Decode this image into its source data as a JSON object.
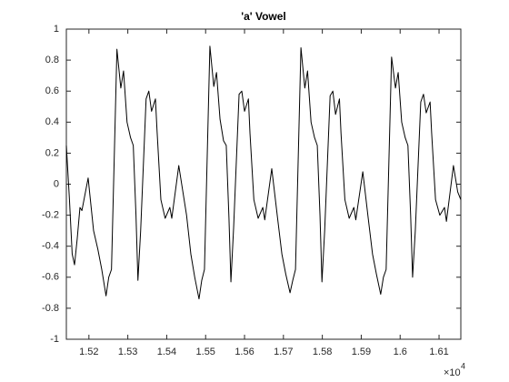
{
  "chart_data": {
    "type": "line",
    "title": "'a' Vowel",
    "x_multiplier": "×10",
    "x_exponent": 4,
    "xlim": [
      1.5142,
      1.6156
    ],
    "xticks": [
      1.52,
      1.53,
      1.54,
      1.55,
      1.56,
      1.57,
      1.58,
      1.59,
      1.6,
      1.61
    ],
    "ylim": [
      -1,
      1
    ],
    "yticks": [
      -1,
      -0.8,
      -0.6,
      -0.4,
      -0.2,
      0,
      0.2,
      0.4,
      0.6,
      0.8,
      1
    ],
    "grid": false,
    "series": [
      {
        "color": "#000000",
        "x": [
          1.5142,
          1.515,
          1.5157,
          1.5163,
          1.517,
          1.5177,
          1.5182,
          1.5198,
          1.5212,
          1.5223,
          1.5233,
          1.5244,
          1.5251,
          1.5258,
          1.5272,
          1.5282,
          1.5289,
          1.5298,
          1.5307,
          1.5314,
          1.5321,
          1.5326,
          1.5333,
          1.5347,
          1.5354,
          1.5361,
          1.5371,
          1.5375,
          1.5385,
          1.5396,
          1.5408,
          1.5413,
          1.5431,
          1.5451,
          1.5462,
          1.5472,
          1.5483,
          1.549,
          1.5497,
          1.5511,
          1.5521,
          1.5528,
          1.5537,
          1.5546,
          1.5553,
          1.556,
          1.5565,
          1.5572,
          1.5586,
          1.5593,
          1.56,
          1.561,
          1.5614,
          1.5624,
          1.5635,
          1.5647,
          1.5652,
          1.567,
          1.5685,
          1.5696,
          1.5706,
          1.5717,
          1.5724,
          1.5731,
          1.5745,
          1.5755,
          1.5762,
          1.5771,
          1.578,
          1.5787,
          1.5794,
          1.5799,
          1.5806,
          1.582,
          1.5827,
          1.5834,
          1.5844,
          1.5848,
          1.5858,
          1.5869,
          1.5881,
          1.5886,
          1.5904,
          1.5918,
          1.5929,
          1.5939,
          1.595,
          1.5957,
          1.5964,
          1.5978,
          1.5988,
          1.5995,
          1.6004,
          1.6013,
          1.602,
          1.6027,
          1.6032,
          1.6039,
          1.6053,
          1.606,
          1.6067,
          1.6077,
          1.6081,
          1.6091,
          1.6102,
          1.6114,
          1.6119,
          1.6137,
          1.6148,
          1.6156
        ],
        "values": [
          0.25,
          -0.1,
          -0.45,
          -0.52,
          -0.35,
          -0.15,
          -0.17,
          0.04,
          -0.3,
          -0.42,
          -0.55,
          -0.72,
          -0.6,
          -0.55,
          0.87,
          0.62,
          0.73,
          0.4,
          0.3,
          0.25,
          -0.2,
          -0.62,
          -0.3,
          0.55,
          0.6,
          0.47,
          0.55,
          0.35,
          -0.1,
          -0.22,
          -0.15,
          -0.22,
          0.12,
          -0.2,
          -0.45,
          -0.6,
          -0.74,
          -0.62,
          -0.55,
          0.89,
          0.63,
          0.72,
          0.42,
          0.28,
          0.25,
          -0.22,
          -0.63,
          -0.28,
          0.58,
          0.6,
          0.47,
          0.55,
          0.33,
          -0.1,
          -0.22,
          -0.15,
          -0.23,
          0.1,
          -0.22,
          -0.45,
          -0.58,
          -0.7,
          -0.62,
          -0.55,
          0.88,
          0.62,
          0.73,
          0.4,
          0.3,
          0.25,
          -0.2,
          -0.63,
          -0.3,
          0.57,
          0.6,
          0.45,
          0.55,
          0.33,
          -0.1,
          -0.22,
          -0.15,
          -0.23,
          0.08,
          -0.22,
          -0.45,
          -0.58,
          -0.71,
          -0.6,
          -0.55,
          0.82,
          0.62,
          0.72,
          0.4,
          0.3,
          0.25,
          -0.2,
          -0.6,
          -0.3,
          0.53,
          0.58,
          0.46,
          0.53,
          0.33,
          -0.1,
          -0.2,
          -0.15,
          -0.24,
          0.12,
          -0.05,
          -0.1
        ]
      }
    ]
  }
}
